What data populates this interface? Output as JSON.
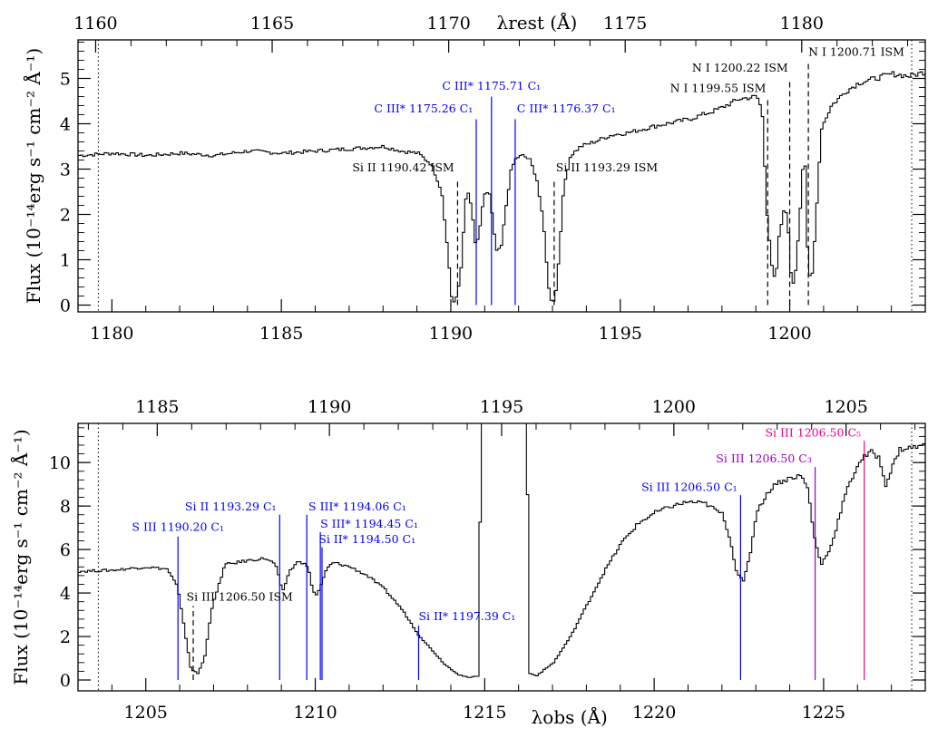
{
  "chart_data": [
    {
      "type": "line",
      "panel": "top",
      "xlim_obs": [
        1179.0,
        1204.0
      ],
      "xlim_rest": [
        1159.5,
        1183.5
      ],
      "ylim": [
        -0.15,
        5.85
      ],
      "xticks_obs": [
        1180,
        1185,
        1190,
        1195,
        1200
      ],
      "xticks_rest": [
        1160,
        1165,
        1170,
        1175,
        1180
      ],
      "yticks": [
        0,
        1,
        2,
        3,
        4,
        5
      ],
      "ylabel": "Flux (10⁻¹⁴erg s⁻¹ cm⁻² Å⁻¹)",
      "top_xlabel": "λrest (Å)",
      "dotted_limits": [
        1179.6,
        1203.6
      ],
      "spectrum": {
        "x": [
          1179.0,
          1180.0,
          1181.0,
          1182.0,
          1183.0,
          1184.0,
          1185.0,
          1186.0,
          1187.0,
          1188.0,
          1188.5,
          1189.0,
          1189.4,
          1189.7,
          1189.9,
          1190.0,
          1190.1,
          1190.25,
          1190.4,
          1190.5,
          1190.6,
          1190.7,
          1190.8,
          1190.95,
          1191.1,
          1191.2,
          1191.3,
          1191.45,
          1191.6,
          1191.75,
          1191.9,
          1192.1,
          1192.3,
          1192.5,
          1192.7,
          1192.85,
          1192.95,
          1193.05,
          1193.15,
          1193.3,
          1193.5,
          1193.8,
          1194.2,
          1194.7,
          1195.2,
          1196.0,
          1197.0,
          1197.8,
          1198.5,
          1199.0,
          1199.15,
          1199.3,
          1199.45,
          1199.55,
          1199.65,
          1199.8,
          1199.9,
          1200.0,
          1200.1,
          1200.25,
          1200.4,
          1200.5,
          1200.6,
          1200.7,
          1200.9,
          1201.2,
          1201.6,
          1202.0,
          1202.5,
          1203.0,
          1203.5,
          1204.0
        ],
        "y": [
          3.3,
          3.35,
          3.3,
          3.35,
          3.3,
          3.4,
          3.35,
          3.4,
          3.45,
          3.5,
          3.4,
          3.35,
          3.1,
          2.5,
          1.0,
          0.1,
          0.05,
          0.6,
          2.3,
          2.5,
          2.0,
          1.3,
          1.55,
          2.45,
          2.5,
          1.9,
          1.2,
          1.25,
          2.2,
          3.0,
          3.25,
          3.3,
          3.2,
          2.8,
          1.8,
          0.4,
          0.05,
          0.15,
          1.0,
          2.6,
          3.3,
          3.5,
          3.6,
          3.75,
          3.8,
          3.95,
          4.1,
          4.3,
          4.55,
          4.6,
          4.3,
          2.0,
          0.8,
          0.5,
          1.5,
          2.1,
          2.0,
          0.7,
          0.4,
          1.8,
          3.6,
          1.0,
          0.4,
          1.4,
          3.9,
          4.4,
          4.7,
          4.9,
          5.0,
          5.1,
          5.05,
          5.15
        ]
      },
      "annotations": [
        {
          "text": "C III* 1175.26 C₁",
          "x": 1190.75,
          "color": "#0000ff",
          "label_y": 4.25,
          "line_y": [
            0,
            4.1
          ],
          "label_x": 1190.65,
          "anchor": "end"
        },
        {
          "text": "C III* 1175.71 C₁",
          "x": 1191.2,
          "color": "#0000ff",
          "label_y": 4.75,
          "line_y": [
            0,
            4.6
          ],
          "label_x": 1191.2,
          "anchor": "middle"
        },
        {
          "text": "C III* 1176.37 C₁",
          "x": 1191.9,
          "color": "#0000ff",
          "label_y": 4.25,
          "line_y": [
            0,
            4.1
          ],
          "label_x": 1191.95,
          "anchor": "start"
        },
        {
          "text": "Si II 1190.42 ISM",
          "x": 1190.2,
          "color": "#000000",
          "label_y": 2.95,
          "line_y": [
            0,
            2.8
          ],
          "dashed": true,
          "label_x": 1190.1,
          "anchor": "end"
        },
        {
          "text": "Si II 1193.29 ISM",
          "x": 1193.05,
          "color": "#000000",
          "label_y": 2.95,
          "line_y": [
            0,
            2.8
          ],
          "dashed": true,
          "label_x": 1193.1,
          "anchor": "start"
        },
        {
          "text": "N I 1199.55 ISM",
          "x": 1199.35,
          "color": "#000000",
          "label_y": 4.7,
          "line_y": [
            0,
            4.55
          ],
          "dashed": true,
          "label_x": 1199.3,
          "anchor": "end"
        },
        {
          "text": "N I 1200.22 ISM",
          "x": 1200.0,
          "color": "#000000",
          "label_y": 5.15,
          "line_y": [
            0,
            5.0
          ],
          "dashed": true,
          "label_x": 1199.95,
          "anchor": "end"
        },
        {
          "text": "N I 1200.71 ISM",
          "x": 1200.55,
          "color": "#000000",
          "label_y": 5.5,
          "line_y": [
            0,
            5.35
          ],
          "dashed": true,
          "label_x": 1200.55,
          "anchor": "start"
        }
      ]
    },
    {
      "type": "line",
      "panel": "bottom",
      "xlim_obs": [
        1203.0,
        1228.0
      ],
      "xlim_rest": [
        1182.7,
        1207.3
      ],
      "ylim": [
        -0.5,
        11.8
      ],
      "xticks_obs": [
        1205,
        1210,
        1215,
        1220,
        1225
      ],
      "xticks_rest": [
        1185,
        1190,
        1195,
        1200,
        1205
      ],
      "yticks": [
        0,
        2,
        4,
        6,
        8,
        10
      ],
      "ylabel": "Flux (10⁻¹⁴erg s⁻¹ cm⁻² Å⁻¹)",
      "xlabel": "λobs (Å)",
      "dotted_limits": [
        1203.6,
        1227.6
      ],
      "spectrum": {
        "x": [
          1203.0,
          1204.0,
          1205.0,
          1205.6,
          1205.9,
          1206.1,
          1206.3,
          1206.5,
          1206.7,
          1206.9,
          1207.3,
          1208.0,
          1208.5,
          1208.8,
          1209.0,
          1209.2,
          1209.5,
          1209.75,
          1209.9,
          1210.0,
          1210.15,
          1210.3,
          1210.5,
          1211.0,
          1211.5,
          1212.0,
          1212.5,
          1212.8,
          1213.0,
          1213.4,
          1213.8,
          1214.2,
          1214.5,
          1214.8,
          1214.85,
          1215.0,
          1216.2,
          1216.3,
          1216.5,
          1217.0,
          1217.5,
          1218.0,
          1218.5,
          1219.0,
          1219.5,
          1220.0,
          1220.5,
          1221.0,
          1221.5,
          1222.0,
          1222.2,
          1222.4,
          1222.6,
          1222.8,
          1223.0,
          1223.5,
          1224.0,
          1224.3,
          1224.5,
          1224.7,
          1224.9,
          1225.2,
          1225.6,
          1226.0,
          1226.2,
          1226.4,
          1226.6,
          1226.8,
          1227.2,
          1228.0
        ],
        "y": [
          5.0,
          5.05,
          5.2,
          5.1,
          4.3,
          2.4,
          0.5,
          0.3,
          1.0,
          3.2,
          5.3,
          5.5,
          5.6,
          5.3,
          4.0,
          5.0,
          5.5,
          5.2,
          4.1,
          3.9,
          4.4,
          5.1,
          5.4,
          5.2,
          4.8,
          4.2,
          3.3,
          2.6,
          2.1,
          1.4,
          0.7,
          0.25,
          0.1,
          0.2,
          12.0,
          12.0,
          12.0,
          0.3,
          0.2,
          0.8,
          2.0,
          3.5,
          5.0,
          6.3,
          7.2,
          7.7,
          8.0,
          8.2,
          8.1,
          7.6,
          6.5,
          5.0,
          4.5,
          5.8,
          7.8,
          9.0,
          9.3,
          9.4,
          8.8,
          6.5,
          5.3,
          6.2,
          8.5,
          10.0,
          10.3,
          10.5,
          10.2,
          9.0,
          10.6,
          10.8
        ]
      },
      "annotations": [
        {
          "text": "S III 1190.20 C₁",
          "x": 1205.95,
          "color": "#0000ff",
          "label_y": 6.85,
          "line_y": [
            0,
            6.6
          ],
          "label_x": 1205.95,
          "anchor": "middle"
        },
        {
          "text": "Si II 1193.29 C₁",
          "x": 1208.95,
          "color": "#0000ff",
          "label_y": 7.8,
          "line_y": [
            0,
            7.6
          ],
          "label_x": 1208.85,
          "anchor": "end"
        },
        {
          "text": "S III* 1194.06 C₁",
          "x": 1209.75,
          "color": "#0000ff",
          "label_y": 7.8,
          "line_y": [
            0,
            7.6
          ],
          "label_x": 1209.8,
          "anchor": "start"
        },
        {
          "text": "S III* 1194.45 C₁",
          "x": 1210.15,
          "color": "#0000ff",
          "label_y": 7.0,
          "line_y": [
            0,
            6.8
          ],
          "label_x": 1210.15,
          "anchor": "start"
        },
        {
          "text": "Si II* 1194.50 C₁",
          "x": 1210.2,
          "color": "#0000ff",
          "label_y": 6.3,
          "line_y": [
            0,
            6.1
          ],
          "label_x": 1210.1,
          "anchor": "start"
        },
        {
          "text": "Si III 1206.50 ISM",
          "x": 1206.4,
          "color": "#000000",
          "label_y": 3.65,
          "line_y": [
            0,
            3.4
          ],
          "dashed": true,
          "label_x": 1206.2,
          "anchor": "start"
        },
        {
          "text": "Si II* 1197.39 C₁",
          "x": 1213.05,
          "color": "#0000ff",
          "label_y": 2.75,
          "line_y": [
            0,
            2.5
          ],
          "label_x": 1213.05,
          "anchor": "start"
        },
        {
          "text": "Si III 1206.50 C₁",
          "x": 1222.55,
          "color": "#0000ff",
          "label_y": 8.7,
          "line_y": [
            0,
            8.5
          ],
          "label_x": 1222.45,
          "anchor": "end"
        },
        {
          "text": "Si III 1206.50 C₃",
          "x": 1224.75,
          "color": "#9900cc",
          "label_y": 10.0,
          "line_y": [
            0,
            9.8
          ],
          "label_x": 1224.65,
          "anchor": "end"
        },
        {
          "text": "Si III 1206.50 C₅",
          "x": 1226.2,
          "color": "#ee0088",
          "label_y": 11.2,
          "line_y": [
            0,
            11.0
          ],
          "label_x": 1226.1,
          "anchor": "end"
        }
      ]
    }
  ]
}
